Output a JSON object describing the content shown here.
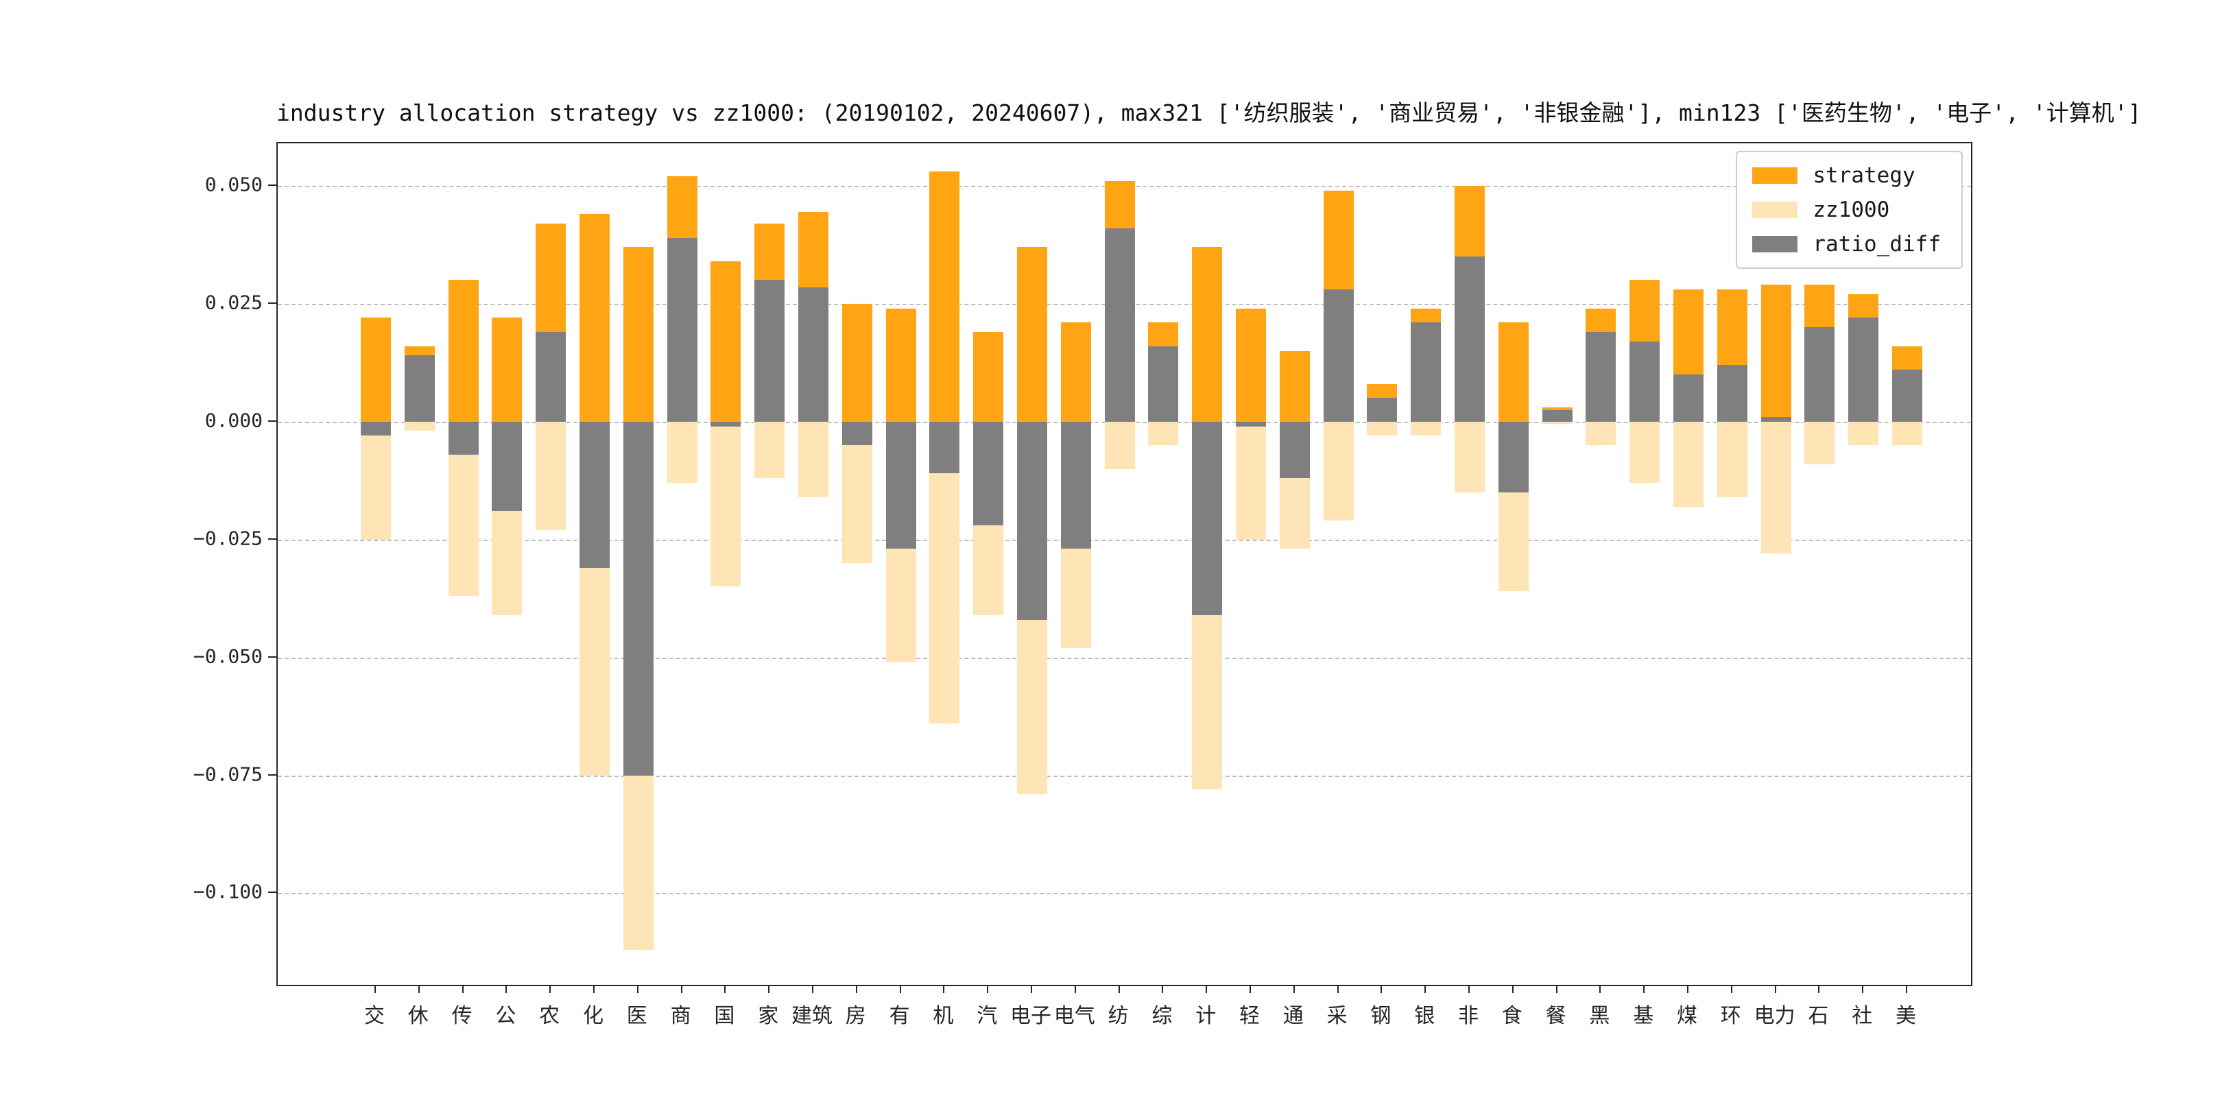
{
  "figure": {
    "background": "#ffffff"
  },
  "chart_data": {
    "type": "bar",
    "title": "industry allocation strategy vs zz1000: (20190102, 20240607), max321 ['纺织服装', '商业贸易', '非银金融'], min123 ['医药生物', '电子', '计算机']",
    "categories": [
      "交",
      "休",
      "传",
      "公",
      "农",
      "化",
      "医",
      "商",
      "国",
      "家",
      "建筑",
      "房",
      "有",
      "机",
      "汽",
      "电子",
      "电气",
      "纺",
      "综",
      "计",
      "轻",
      "通",
      "采",
      "钢",
      "银",
      "非",
      "食",
      "餐",
      "黑",
      "基",
      "煤",
      "环",
      "电力",
      "石",
      "社",
      "美"
    ],
    "series": [
      {
        "name": "strategy",
        "color": "#FFA513",
        "values": [
          0.022,
          0.016,
          0.03,
          0.022,
          0.042,
          0.044,
          0.037,
          0.052,
          0.034,
          0.042,
          0.0445,
          0.025,
          0.024,
          0.053,
          0.019,
          0.037,
          0.021,
          0.051,
          0.021,
          0.037,
          0.024,
          0.015,
          0.049,
          0.008,
          0.024,
          0.05,
          0.021,
          0.003,
          0.024,
          0.03,
          0.028,
          0.028,
          0.029,
          0.029,
          0.027,
          0.016
        ]
      },
      {
        "name": "zz1000",
        "color": "#FFE4B5",
        "values": [
          -0.025,
          -0.002,
          -0.037,
          -0.041,
          -0.023,
          -0.075,
          -0.112,
          -0.013,
          -0.035,
          -0.012,
          -0.016,
          -0.03,
          -0.051,
          -0.064,
          -0.041,
          -0.079,
          -0.048,
          -0.01,
          -0.005,
          -0.078,
          -0.025,
          -0.027,
          -0.021,
          -0.003,
          -0.003,
          -0.015,
          -0.036,
          -0.0005,
          -0.005,
          -0.013,
          -0.018,
          -0.016,
          -0.028,
          -0.009,
          -0.005,
          -0.005
        ]
      },
      {
        "name": "ratio_diff",
        "color": "#7F7F7F",
        "values": [
          -0.003,
          0.014,
          -0.007,
          -0.019,
          0.019,
          -0.031,
          -0.075,
          0.039,
          -0.001,
          0.03,
          0.0285,
          -0.005,
          -0.027,
          -0.011,
          -0.022,
          -0.042,
          -0.027,
          0.041,
          0.016,
          -0.041,
          -0.001,
          -0.012,
          0.028,
          0.005,
          0.021,
          0.035,
          -0.015,
          0.0025,
          0.019,
          0.017,
          0.01,
          0.012,
          0.001,
          0.02,
          0.022,
          0.011
        ]
      }
    ],
    "yticks": [
      {
        "value": 0.05,
        "label": "0.050"
      },
      {
        "value": 0.025,
        "label": "0.025"
      },
      {
        "value": 0.0,
        "label": "0.000"
      },
      {
        "value": -0.025,
        "label": "−0.025"
      },
      {
        "value": -0.05,
        "label": "−0.050"
      },
      {
        "value": -0.075,
        "label": "−0.075"
      },
      {
        "value": -0.1,
        "label": "−0.100"
      }
    ],
    "ylim": [
      -0.12,
      0.059
    ],
    "xlabel": "",
    "ylabel": "",
    "grid": "horizontal-dashed",
    "legend_position": "upper-right",
    "legend_entries": [
      "strategy",
      "zz1000",
      "ratio_diff"
    ],
    "note": "zz1000 weights are plotted downward (negative); ratio_diff = strategy - zz1000, drawn in front"
  }
}
